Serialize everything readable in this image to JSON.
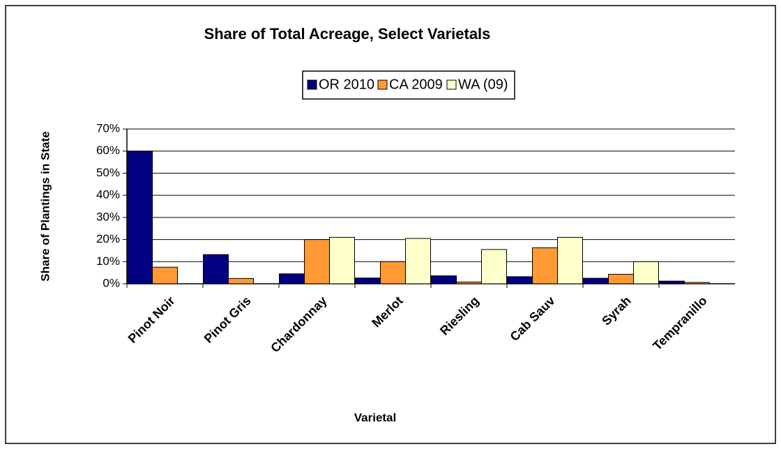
{
  "chart_data": {
    "type": "bar",
    "title": "Share of Total Acreage, Select Varietals",
    "x_label": "Varietal",
    "y_label": "Share of Plantings in State",
    "categories": [
      "Pinot Noir",
      "Pinot Gris",
      "Chardonnay",
      "Merlot",
      "Riesling",
      "Cab Sauv",
      "Syrah",
      "Tempranillo"
    ],
    "series": [
      {
        "name": "OR 2010",
        "color": "#000080",
        "values": [
          60,
          13.2,
          4.5,
          2.6,
          3.6,
          3.2,
          2.5,
          1.2
        ]
      },
      {
        "name": "CA 2009",
        "color": "#ff9933",
        "values": [
          7.5,
          2.4,
          20,
          10,
          0.8,
          16.3,
          4.3,
          0.6
        ]
      },
      {
        "name": "WA (09)",
        "color": "#ffffcc",
        "values": [
          0,
          0,
          21,
          20.5,
          15.5,
          21,
          10,
          0
        ]
      }
    ],
    "ylim": [
      0,
      70
    ],
    "yticks": [
      {
        "value": 0,
        "label": "0%"
      },
      {
        "value": 10,
        "label": "10%"
      },
      {
        "value": 20,
        "label": "20%"
      },
      {
        "value": 30,
        "label": "30%"
      },
      {
        "value": 40,
        "label": "40%"
      },
      {
        "value": 50,
        "label": "50%"
      },
      {
        "value": 60,
        "label": "60%"
      },
      {
        "value": 70,
        "label": "70%"
      }
    ],
    "grid": true
  }
}
